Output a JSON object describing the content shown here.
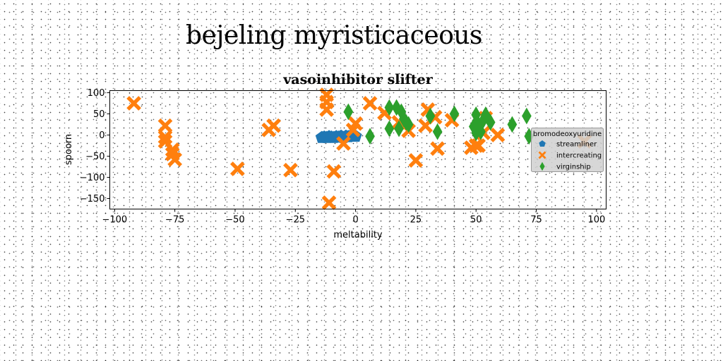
{
  "page": {
    "title": "bejeling myristicaceous"
  },
  "chart_data": {
    "type": "scatter",
    "title": "vasoinhibitor slifter",
    "xlabel": "meltability",
    "ylabel": "spoorn",
    "xlim": [
      -102,
      104
    ],
    "ylim": [
      -175,
      105
    ],
    "xticks": [
      -100,
      -75,
      -50,
      -25,
      0,
      25,
      50,
      75,
      100
    ],
    "yticks": [
      100,
      50,
      0,
      -50,
      -100,
      -150
    ],
    "grid": false,
    "legend": {
      "title": "bromodeoxyuridine",
      "position": "right"
    },
    "series": [
      {
        "name": "streamliner",
        "color": "#1f77b4",
        "marker": "pentagon",
        "points": [
          [
            -14,
            -6
          ],
          [
            -13,
            -5
          ],
          [
            -12,
            -6
          ],
          [
            -11,
            -4
          ],
          [
            -10,
            -5
          ],
          [
            -9,
            -6
          ],
          [
            -8,
            -4
          ],
          [
            -7,
            -5
          ],
          [
            -6,
            -3
          ],
          [
            -5,
            -6
          ],
          [
            -4,
            -3
          ],
          [
            -3,
            -4
          ],
          [
            -2,
            -2
          ],
          [
            -1,
            -2
          ],
          [
            0,
            -3
          ]
        ]
      },
      {
        "name": "intercreating",
        "color": "#ff7f0e",
        "marker": "x",
        "points": [
          [
            -92,
            75
          ],
          [
            -79,
            22
          ],
          [
            -79,
            -5
          ],
          [
            -79,
            -15
          ],
          [
            -76,
            -35
          ],
          [
            -76,
            -45
          ],
          [
            -75,
            -58
          ],
          [
            -49,
            -80
          ],
          [
            -36,
            12
          ],
          [
            -34,
            22
          ],
          [
            -27,
            -83
          ],
          [
            -12,
            95
          ],
          [
            -12,
            78
          ],
          [
            -12,
            60
          ],
          [
            -11,
            -160
          ],
          [
            -9,
            -86
          ],
          [
            -5,
            -20
          ],
          [
            -1,
            12
          ],
          [
            0,
            27
          ],
          [
            6,
            75
          ],
          [
            12,
            52
          ],
          [
            18,
            30
          ],
          [
            22,
            10
          ],
          [
            25,
            -60
          ],
          [
            29,
            22
          ],
          [
            30,
            60
          ],
          [
            33,
            42
          ],
          [
            34,
            -32
          ],
          [
            40,
            35
          ],
          [
            48,
            -30
          ],
          [
            50,
            -25
          ],
          [
            51,
            -25
          ],
          [
            53,
            5
          ],
          [
            54,
            40
          ],
          [
            59,
            0
          ],
          [
            95,
            -15
          ]
        ]
      },
      {
        "name": "virginship",
        "color": "#2ca02c",
        "marker": "diamond",
        "points": [
          [
            -3,
            55
          ],
          [
            6,
            -3
          ],
          [
            14,
            65
          ],
          [
            14,
            15
          ],
          [
            17,
            65
          ],
          [
            18,
            15
          ],
          [
            19,
            55
          ],
          [
            20,
            38
          ],
          [
            21,
            30
          ],
          [
            22,
            25
          ],
          [
            31,
            45
          ],
          [
            34,
            8
          ],
          [
            41,
            50
          ],
          [
            49,
            20
          ],
          [
            50,
            48
          ],
          [
            50,
            5
          ],
          [
            51,
            25
          ],
          [
            52,
            8
          ],
          [
            53,
            35
          ],
          [
            54,
            48
          ],
          [
            56,
            30
          ],
          [
            65,
            25
          ],
          [
            71,
            45
          ],
          [
            72,
            -3
          ]
        ]
      }
    ]
  }
}
